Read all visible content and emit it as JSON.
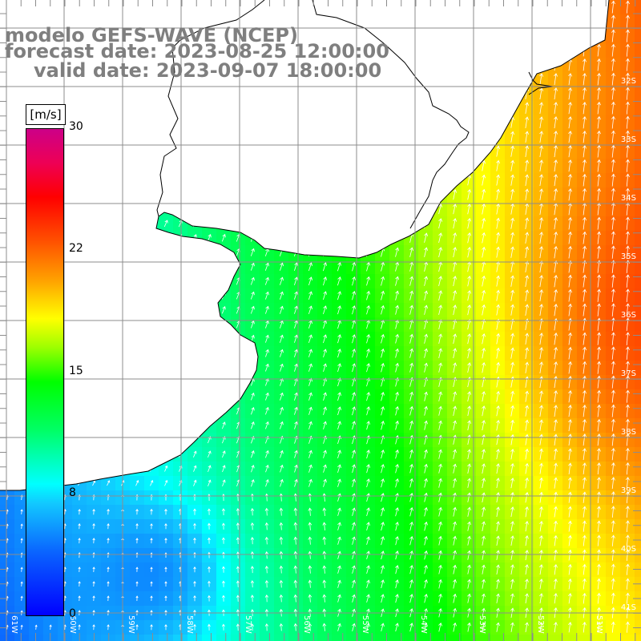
{
  "map": {
    "title_line1": "modelo GEFS-WAVE (NCEP)",
    "title_line2": "forecast date: 2023-08-25 12:00:00",
    "title_line3": "valid date: 2023-09-07 18:00:00"
  },
  "colorbar": {
    "units": "[m/s]",
    "tick_labels": [
      "30",
      "22",
      "15",
      "8",
      "0"
    ],
    "colors": [
      "#0000ff",
      "#00ffff",
      "#00ff00",
      "#ffff00",
      "#ff0000",
      "#cc0088"
    ]
  },
  "lat_labels": [
    "32S",
    "33S",
    "34S",
    "35S",
    "36S",
    "37S",
    "38S",
    "39S",
    "40S",
    "41S"
  ],
  "lon_labels": [
    "61W",
    "60W",
    "59W",
    "58W",
    "57W",
    "56W",
    "55W",
    "54W",
    "53W",
    "52W",
    "51W"
  ],
  "colors": {
    "land": "#ffffff",
    "grid": "#8c8c8c",
    "coast": "#000000",
    "title": "#7f7f7f",
    "arrows": "#ffffff"
  }
}
